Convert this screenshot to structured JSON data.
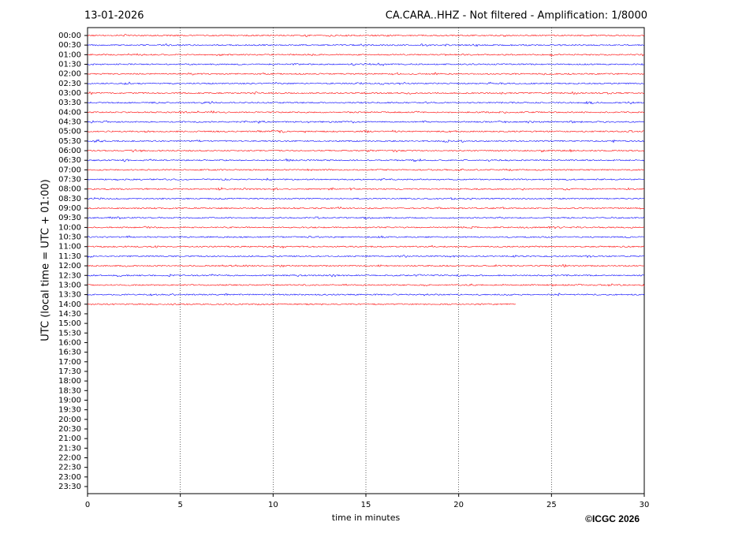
{
  "chart_data": {
    "type": "helicorder",
    "date": "13-01-2026",
    "title": "CA.CARA..HHZ - Not filtered - Amplification: 1/8000",
    "ylabel": "UTC (local time = UTC + 01:00)",
    "xlabel": "time in minutes",
    "copyright": "©ICGC 2026",
    "xlim": [
      0,
      30
    ],
    "xticks": [
      0,
      5,
      10,
      15,
      20,
      25,
      30
    ],
    "grid": true,
    "colors": [
      "#ff0000",
      "#0000ff"
    ],
    "categories": [
      "00:00",
      "00:30",
      "01:00",
      "01:30",
      "02:00",
      "02:30",
      "03:00",
      "03:30",
      "04:00",
      "04:30",
      "05:00",
      "05:30",
      "06:00",
      "06:30",
      "07:00",
      "07:30",
      "08:00",
      "08:30",
      "09:00",
      "09:30",
      "10:00",
      "10:30",
      "11:00",
      "11:30",
      "12:00",
      "12:30",
      "13:00",
      "13:30",
      "14:00",
      "14:30",
      "15:00",
      "15:30",
      "16:00",
      "16:30",
      "17:00",
      "17:30",
      "18:00",
      "18:30",
      "19:00",
      "19:30",
      "20:00",
      "20:30",
      "21:00",
      "21:30",
      "22:00",
      "22:30",
      "23:00",
      "23:30"
    ],
    "values": [
      30,
      30,
      30,
      30,
      30,
      30,
      30,
      30,
      30,
      30,
      30,
      30,
      30,
      30,
      30,
      30,
      30,
      30,
      30,
      30,
      30,
      30,
      30,
      30,
      30,
      30,
      30,
      30,
      23.1,
      null,
      null,
      null,
      null,
      null,
      null,
      null,
      null,
      null,
      null,
      null,
      null,
      null,
      null,
      null,
      null,
      null,
      null,
      null
    ]
  }
}
